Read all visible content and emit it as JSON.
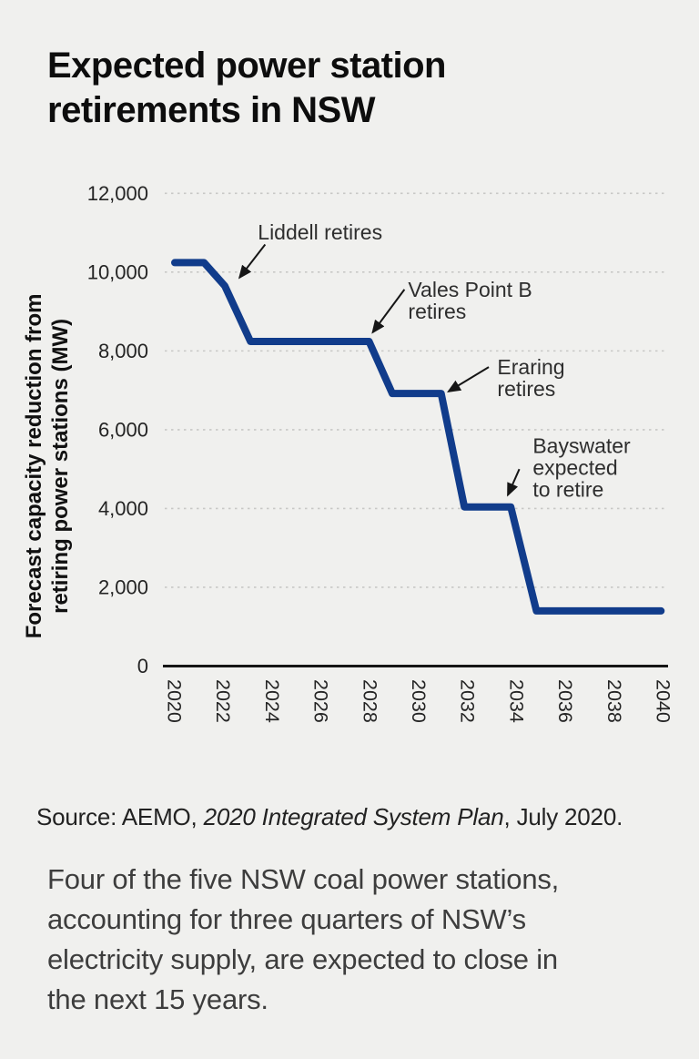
{
  "page": {
    "title_lines": [
      "Expected power station",
      "retirements in NSW"
    ],
    "source": {
      "prefix": "Source: AEMO, ",
      "italic": "2020 Integrated System Plan",
      "suffix": ", July 2020."
    },
    "caption_lines": [
      "Four of the five NSW coal power stations,",
      "accounting for three quarters of NSW’s",
      "electricity supply, are expected to close in",
      "the next 15 years."
    ]
  },
  "chart_data": {
    "type": "line",
    "line_style": "step",
    "title": "",
    "xlabel": "",
    "ylabel_lines": [
      "Forecast capacity reduction from",
      "retiring power stations (MW)"
    ],
    "xlim": [
      2020,
      2040
    ],
    "ylim": [
      0,
      12000
    ],
    "x_ticks": [
      2020,
      2022,
      2024,
      2026,
      2028,
      2030,
      2032,
      2034,
      2036,
      2038,
      2040
    ],
    "y_ticks": [
      0,
      2000,
      4000,
      6000,
      8000,
      10000,
      12000
    ],
    "grid": "horizontal-dotted",
    "legend": "none",
    "line_color": "#113c8b",
    "series": [
      {
        "name": "Forecast capacity reduction from retiring power stations (MW)",
        "points": [
          [
            2020,
            10240
          ],
          [
            2021.2,
            10240
          ],
          [
            2022.05,
            9650
          ],
          [
            2023.1,
            8240
          ],
          [
            2027.95,
            8240
          ],
          [
            2028.9,
            6920
          ],
          [
            2030.9,
            6920
          ],
          [
            2031.85,
            4040
          ],
          [
            2033.75,
            4040
          ],
          [
            2034.8,
            1400
          ],
          [
            2039.9,
            1400
          ]
        ]
      }
    ],
    "annotations": [
      {
        "lines": [
          "Liddell retires"
        ],
        "text_at": [
          2023.4,
          11250
        ],
        "arrow_tail": [
          2023.7,
          10700
        ],
        "arrow_tip": [
          2022.65,
          9860
        ]
      },
      {
        "lines": [
          "Vales Point B",
          "retires"
        ],
        "text_at": [
          2029.55,
          9790
        ],
        "arrow_tail": [
          2029.4,
          9560
        ],
        "arrow_tip": [
          2028.1,
          8470
        ]
      },
      {
        "lines": [
          "Eraring",
          "retires"
        ],
        "text_at": [
          2033.2,
          7820
        ],
        "arrow_tail": [
          2032.85,
          7590
        ],
        "arrow_tip": [
          2031.2,
          6970
        ]
      },
      {
        "lines": [
          "Bayswater",
          "expected",
          "to retire"
        ],
        "text_at": [
          2034.65,
          5820
        ],
        "arrow_tail": [
          2034.1,
          5000
        ],
        "arrow_tip": [
          2033.63,
          4340
        ]
      }
    ]
  }
}
